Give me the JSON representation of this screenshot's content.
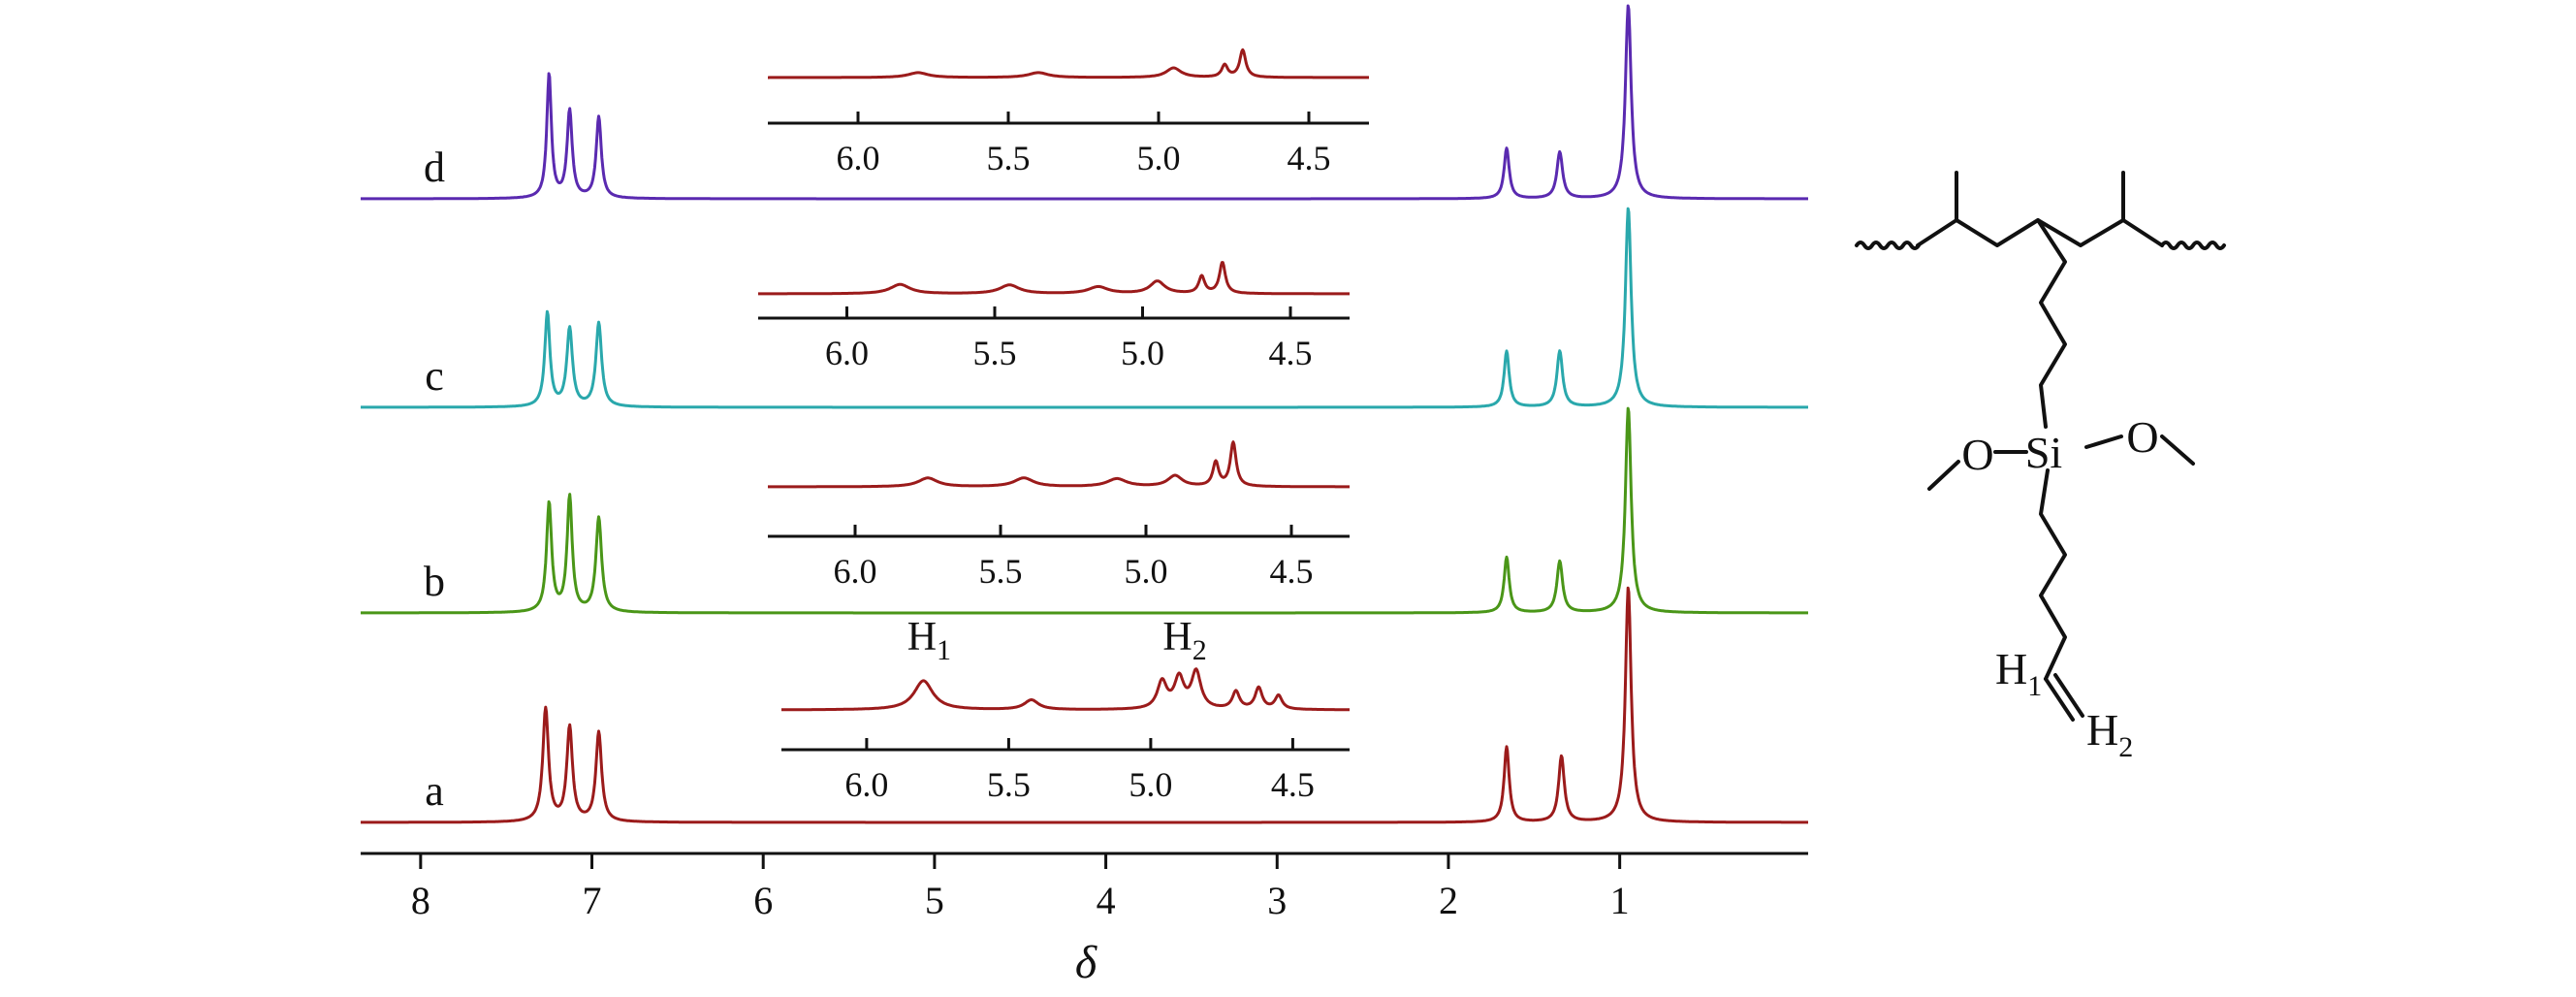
{
  "chart_data": {
    "type": "line",
    "xlabel": "δ",
    "xlim": [
      8.35,
      -0.1
    ],
    "x_reversed": true,
    "x_ticks": [
      8,
      7,
      6,
      5,
      4,
      3,
      2,
      1
    ],
    "grid": false,
    "legend": "none",
    "series": [
      {
        "name": "a",
        "color": "#9b1b1b",
        "baseline": 0,
        "peaks": [
          {
            "x": 7.27,
            "y": 0.48,
            "w": 0.02
          },
          {
            "x": 7.13,
            "y": 0.4,
            "w": 0.02
          },
          {
            "x": 6.96,
            "y": 0.38,
            "w": 0.02
          },
          {
            "x": 1.66,
            "y": 0.32,
            "w": 0.018
          },
          {
            "x": 1.34,
            "y": 0.28,
            "w": 0.02
          },
          {
            "x": 0.95,
            "y": 1.0,
            "w": 0.02
          }
        ]
      },
      {
        "name": "b",
        "color": "#4a9618",
        "baseline": 0,
        "peaks": [
          {
            "x": 7.25,
            "y": 0.53,
            "w": 0.018
          },
          {
            "x": 7.13,
            "y": 0.56,
            "w": 0.018
          },
          {
            "x": 6.96,
            "y": 0.46,
            "w": 0.02
          },
          {
            "x": 1.66,
            "y": 0.27,
            "w": 0.018
          },
          {
            "x": 1.35,
            "y": 0.25,
            "w": 0.02
          },
          {
            "x": 0.95,
            "y": 1.0,
            "w": 0.02
          }
        ]
      },
      {
        "name": "c",
        "color": "#2aa8ac",
        "baseline": 0,
        "peaks": [
          {
            "x": 7.26,
            "y": 0.47,
            "w": 0.018
          },
          {
            "x": 7.13,
            "y": 0.39,
            "w": 0.02
          },
          {
            "x": 6.96,
            "y": 0.42,
            "w": 0.02
          },
          {
            "x": 1.66,
            "y": 0.28,
            "w": 0.018
          },
          {
            "x": 1.35,
            "y": 0.28,
            "w": 0.02
          },
          {
            "x": 0.95,
            "y": 1.0,
            "w": 0.02
          }
        ]
      },
      {
        "name": "d",
        "color": "#5a2ab0",
        "baseline": 0,
        "peaks": [
          {
            "x": 7.25,
            "y": 0.64,
            "w": 0.016
          },
          {
            "x": 7.13,
            "y": 0.45,
            "w": 0.018
          },
          {
            "x": 6.96,
            "y": 0.42,
            "w": 0.018
          },
          {
            "x": 1.66,
            "y": 0.26,
            "w": 0.018
          },
          {
            "x": 1.35,
            "y": 0.24,
            "w": 0.02
          },
          {
            "x": 0.95,
            "y": 1.0,
            "w": 0.02
          }
        ]
      }
    ],
    "insets": [
      {
        "for": "a",
        "color": "#9b1b1b",
        "xlim": [
          6.3,
          4.3
        ],
        "x_ticks": [
          "6.0",
          "5.5",
          "5.0",
          "4.5"
        ],
        "annotations": [
          {
            "text": "H",
            "sub": "1",
            "x": 5.78
          },
          {
            "text": "H",
            "sub": "2",
            "x": 4.88
          }
        ],
        "peaks": [
          {
            "x": 5.8,
            "y": 0.75,
            "w": 0.04
          },
          {
            "x": 5.42,
            "y": 0.25,
            "w": 0.03
          },
          {
            "x": 4.96,
            "y": 0.7,
            "w": 0.02
          },
          {
            "x": 4.9,
            "y": 0.78,
            "w": 0.02
          },
          {
            "x": 4.84,
            "y": 0.95,
            "w": 0.02
          },
          {
            "x": 4.7,
            "y": 0.45,
            "w": 0.015
          },
          {
            "x": 4.62,
            "y": 0.55,
            "w": 0.015
          },
          {
            "x": 4.55,
            "y": 0.35,
            "w": 0.015
          }
        ]
      },
      {
        "for": "b",
        "color": "#9b1b1b",
        "xlim": [
          6.3,
          4.3
        ],
        "x_ticks": [
          "6.0",
          "5.5",
          "5.0",
          "4.5"
        ],
        "peaks": [
          {
            "x": 5.75,
            "y": 0.2,
            "w": 0.04
          },
          {
            "x": 5.42,
            "y": 0.2,
            "w": 0.04
          },
          {
            "x": 5.1,
            "y": 0.18,
            "w": 0.04
          },
          {
            "x": 4.9,
            "y": 0.25,
            "w": 0.03
          },
          {
            "x": 4.76,
            "y": 0.55,
            "w": 0.012
          },
          {
            "x": 4.7,
            "y": 1.0,
            "w": 0.012
          }
        ]
      },
      {
        "for": "c",
        "color": "#9b1b1b",
        "xlim": [
          6.3,
          4.3
        ],
        "x_ticks": [
          "6.0",
          "5.5",
          "5.0",
          "4.5"
        ],
        "peaks": [
          {
            "x": 5.82,
            "y": 0.3,
            "w": 0.04
          },
          {
            "x": 5.45,
            "y": 0.28,
            "w": 0.04
          },
          {
            "x": 5.15,
            "y": 0.22,
            "w": 0.04
          },
          {
            "x": 4.95,
            "y": 0.4,
            "w": 0.03
          },
          {
            "x": 4.8,
            "y": 0.55,
            "w": 0.012
          },
          {
            "x": 4.73,
            "y": 1.0,
            "w": 0.012
          }
        ]
      },
      {
        "for": "d",
        "color": "#9b1b1b",
        "xlim": [
          6.3,
          4.3
        ],
        "x_ticks": [
          "6.0",
          "5.5",
          "5.0",
          "4.5"
        ],
        "peaks": [
          {
            "x": 5.8,
            "y": 0.18,
            "w": 0.04
          },
          {
            "x": 5.4,
            "y": 0.18,
            "w": 0.04
          },
          {
            "x": 4.95,
            "y": 0.35,
            "w": 0.03
          },
          {
            "x": 4.78,
            "y": 0.45,
            "w": 0.012
          },
          {
            "x": 4.72,
            "y": 1.0,
            "w": 0.012
          }
        ]
      }
    ]
  },
  "structure": {
    "atoms": {
      "si": "Si",
      "o_left": "O",
      "o_right": "O",
      "h1": "H",
      "h1_sub": "1",
      "h2": "H",
      "h2_sub": "2"
    }
  }
}
